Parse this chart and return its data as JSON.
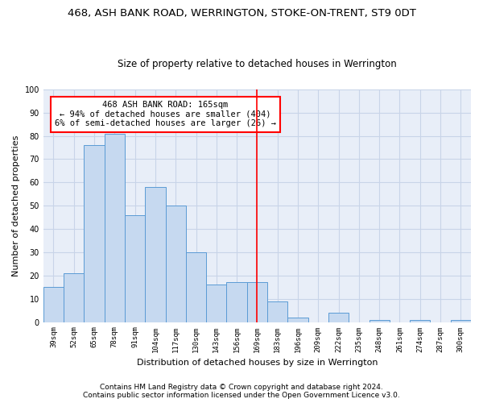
{
  "title": "468, ASH BANK ROAD, WERRINGTON, STOKE-ON-TRENT, ST9 0DT",
  "subtitle": "Size of property relative to detached houses in Werrington",
  "xlabel": "Distribution of detached houses by size in Werrington",
  "ylabel": "Number of detached properties",
  "categories": [
    "39sqm",
    "52sqm",
    "65sqm",
    "78sqm",
    "91sqm",
    "104sqm",
    "117sqm",
    "130sqm",
    "143sqm",
    "156sqm",
    "169sqm",
    "183sqm",
    "196sqm",
    "209sqm",
    "222sqm",
    "235sqm",
    "248sqm",
    "261sqm",
    "274sqm",
    "287sqm",
    "300sqm"
  ],
  "values": [
    15,
    21,
    76,
    81,
    46,
    58,
    50,
    30,
    16,
    17,
    17,
    9,
    2,
    0,
    4,
    0,
    1,
    0,
    1,
    0,
    1
  ],
  "bar_color": "#c6d9f0",
  "bar_edgecolor": "#5b9bd5",
  "marker_index": 10,
  "annotation_title": "468 ASH BANK ROAD: 165sqm",
  "annotation_line1": "← 94% of detached houses are smaller (404)",
  "annotation_line2": "6% of semi-detached houses are larger (26) →",
  "vline_color": "red",
  "annotation_box_edgecolor": "red",
  "ylim": [
    0,
    100
  ],
  "grid_color": "#c8d4e8",
  "background_color": "#e8eef8",
  "footer_line1": "Contains HM Land Registry data © Crown copyright and database right 2024.",
  "footer_line2": "Contains public sector information licensed under the Open Government Licence v3.0.",
  "title_fontsize": 9.5,
  "subtitle_fontsize": 8.5,
  "xlabel_fontsize": 8,
  "ylabel_fontsize": 8,
  "tick_fontsize": 6.5,
  "annotation_fontsize": 7.5,
  "footer_fontsize": 6.5
}
